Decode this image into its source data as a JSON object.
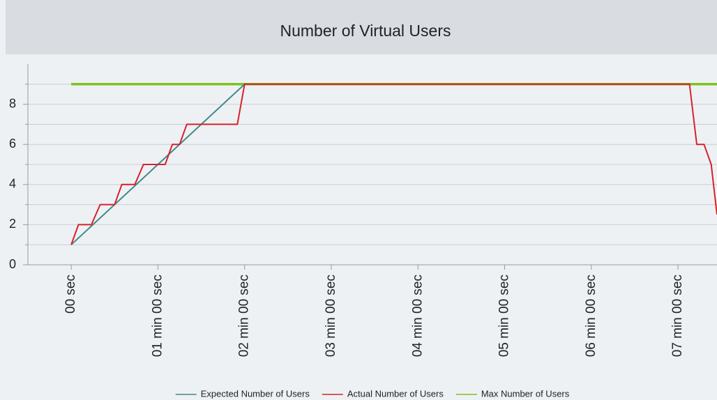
{
  "chart_data": {
    "type": "line",
    "title": "Number of Virtual Users",
    "xlim": [
      -30,
      447
    ],
    "xticks": [
      {
        "value": 0,
        "label": "00 sec"
      },
      {
        "value": 60,
        "label": "01 min 00 sec"
      },
      {
        "value": 120,
        "label": "02 min 00 sec"
      },
      {
        "value": 180,
        "label": "03 min 00 sec"
      },
      {
        "value": 240,
        "label": "04 min 00 sec"
      },
      {
        "value": 300,
        "label": "05 min 00 sec"
      },
      {
        "value": 360,
        "label": "06 min 00 sec"
      },
      {
        "value": 420,
        "label": "07 min 00 sec"
      }
    ],
    "ylim": [
      0,
      10
    ],
    "yticks": [
      0,
      2,
      4,
      6,
      8
    ],
    "minor_yticks": [
      1,
      3,
      5,
      7,
      9
    ],
    "grid": true,
    "legend": "bottom",
    "series": [
      {
        "name": "Expected Number of Users",
        "color": "#3f8a8c",
        "x": [
          0,
          120
        ],
        "values": [
          1,
          9
        ]
      },
      {
        "name": "Actual Number of Users",
        "color": "#d8202a",
        "x": [
          0,
          5,
          14,
          20,
          30,
          35,
          44,
          50,
          65,
          70,
          75,
          80,
          115,
          120,
          428,
          433,
          438,
          443,
          447
        ],
        "values": [
          1,
          2,
          2,
          3,
          3,
          4,
          4,
          5,
          5,
          6,
          6,
          7,
          7,
          9,
          9,
          6,
          6,
          5,
          2.5
        ]
      },
      {
        "name": "Max Number of Users",
        "color": "#7dc21e",
        "x": [
          0,
          447
        ],
        "values": [
          9,
          9
        ]
      }
    ]
  }
}
